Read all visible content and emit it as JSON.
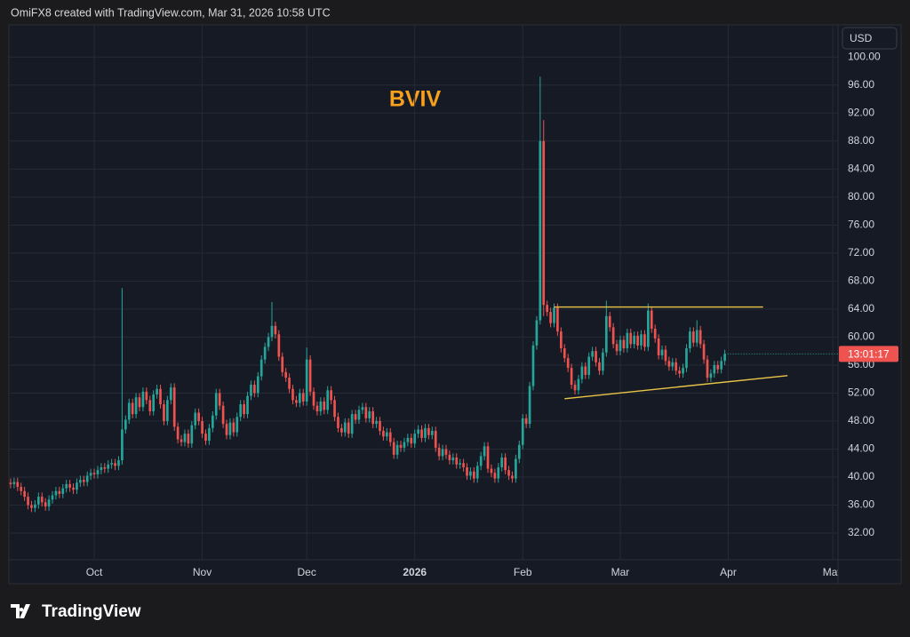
{
  "header": "OmiFX8 created with TradingView.com, Mar 31, 2026 10:58 UTC",
  "currency": "USD",
  "countdown": "13:01:17",
  "logo": "TradingView",
  "chart_data": {
    "type": "candlestick",
    "title": "BVIV",
    "title_color": "#f7a01d",
    "up_color": "#26a69a",
    "down_color": "#ef5350",
    "grid": true,
    "xlim": [
      -0.5,
      237.5
    ],
    "xticks": [
      {
        "value": 24,
        "label": "Oct"
      },
      {
        "value": 55,
        "label": "Nov"
      },
      {
        "value": 85,
        "label": "Dec"
      },
      {
        "value": 116,
        "label": "2026"
      },
      {
        "value": 147,
        "label": "Feb"
      },
      {
        "value": 175,
        "label": "Mar"
      },
      {
        "value": 206,
        "label": "Apr"
      },
      {
        "value": 236,
        "label": "May"
      }
    ],
    "ylim": [
      28.2,
      104.6
    ],
    "yticks": [
      {
        "value": 32,
        "label": "32.00"
      },
      {
        "value": 36,
        "label": "36.00"
      },
      {
        "value": 40,
        "label": "40.00"
      },
      {
        "value": 44,
        "label": "44.00"
      },
      {
        "value": 48,
        "label": "48.00"
      },
      {
        "value": 52,
        "label": "52.00"
      },
      {
        "value": 56,
        "label": "56.00"
      },
      {
        "value": 60,
        "label": "60.00"
      },
      {
        "value": 64,
        "label": "64.00"
      },
      {
        "value": 68,
        "label": "68.00"
      },
      {
        "value": 72,
        "label": "72.00"
      },
      {
        "value": 76,
        "label": "76.00"
      },
      {
        "value": 80,
        "label": "80.00"
      },
      {
        "value": 84,
        "label": "84.00"
      },
      {
        "value": 88,
        "label": "88.00"
      },
      {
        "value": 92,
        "label": "92.00"
      },
      {
        "value": 96,
        "label": "96.00"
      },
      {
        "value": 100,
        "label": "100.00"
      }
    ],
    "open": [
      39.2,
      39.0,
      39.3,
      38.6,
      38.0,
      37.2,
      36.0,
      35.6,
      36.1,
      37.2,
      36.4,
      35.8,
      36.8,
      37.4,
      38.0,
      37.6,
      38.4,
      39.0,
      38.5,
      38.2,
      39.2,
      39.6,
      39.3,
      40.2,
      40.6,
      40.4,
      41.0,
      41.4,
      41.2,
      41.8,
      42.0,
      41.6,
      42.4,
      46.8,
      48.2,
      50.6,
      49.0,
      51.4,
      50.0,
      52.2,
      51.0,
      49.4,
      51.8,
      52.6,
      50.4,
      48.0,
      51.0,
      52.8,
      47.2,
      45.4,
      45.0,
      46.2,
      44.8,
      47.4,
      49.2,
      48.0,
      46.2,
      45.2,
      47.0,
      48.8,
      52.0,
      50.2,
      47.6,
      46.0,
      47.8,
      46.4,
      48.6,
      50.4,
      49.0,
      51.6,
      53.2,
      52.0,
      54.4,
      56.8,
      58.6,
      60.0,
      61.6,
      60.4,
      57.2,
      55.0,
      54.2,
      52.6,
      51.0,
      50.6,
      52.0,
      50.8,
      56.8,
      52.2,
      50.2,
      49.4,
      50.8,
      49.6,
      52.4,
      51.0,
      48.6,
      47.0,
      46.4,
      47.8,
      46.2,
      49.0,
      48.2,
      49.6,
      50.0,
      48.4,
      49.4,
      47.6,
      48.0,
      46.6,
      45.8,
      46.4,
      45.0,
      43.2,
      44.6,
      44.2,
      45.0,
      45.6,
      44.8,
      46.2,
      46.8,
      45.6,
      47.0,
      46.0,
      46.6,
      44.2,
      43.0,
      44.0,
      43.2,
      42.4,
      42.8,
      41.8,
      42.0,
      41.4,
      40.2,
      40.8,
      39.8,
      41.6,
      43.0,
      44.4,
      41.2,
      40.6,
      39.8,
      41.4,
      42.8,
      41.0,
      40.2,
      39.8,
      42.6,
      44.6,
      48.4,
      47.6,
      53.0,
      58.8,
      62.4,
      88.0,
      64.6,
      63.6,
      62.0,
      64.2,
      60.8,
      58.4,
      57.0,
      55.6,
      53.2,
      52.4,
      54.0,
      55.8,
      54.6,
      57.2,
      58.0,
      56.4,
      55.2,
      57.8,
      63.0,
      61.4,
      59.0,
      58.0,
      59.6,
      58.4,
      60.6,
      59.0,
      60.2,
      58.8,
      60.4,
      58.6,
      63.8,
      61.2,
      59.8,
      57.4,
      58.2,
      56.6,
      55.8,
      56.4,
      55.2,
      54.8,
      55.6,
      58.4,
      60.8,
      59.2,
      61.0,
      59.0,
      56.8,
      54.2,
      54.8,
      56.0,
      55.4,
      56.6
    ],
    "high": [
      39.8,
      39.9,
      39.9,
      39.2,
      38.6,
      37.8,
      36.6,
      36.7,
      37.8,
      37.8,
      37.0,
      37.4,
      38.0,
      38.6,
      38.6,
      39.0,
      39.6,
      39.6,
      39.1,
      39.8,
      40.2,
      40.2,
      40.8,
      41.2,
      41.2,
      41.6,
      42.0,
      42.0,
      42.4,
      42.6,
      42.6,
      43.0,
      67.0,
      48.8,
      51.2,
      51.2,
      52.0,
      52.0,
      52.8,
      52.8,
      51.6,
      52.4,
      53.2,
      53.2,
      51.0,
      51.6,
      53.4,
      53.4,
      47.8,
      46.0,
      46.8,
      46.8,
      48.0,
      49.8,
      49.8,
      48.6,
      46.8,
      47.6,
      49.4,
      52.6,
      52.6,
      50.8,
      48.2,
      48.4,
      48.4,
      49.2,
      51.0,
      51.0,
      52.2,
      53.8,
      53.8,
      55.0,
      57.4,
      59.2,
      60.6,
      65.0,
      62.2,
      61.0,
      57.8,
      55.6,
      54.8,
      53.2,
      51.6,
      52.6,
      52.6,
      58.5,
      57.4,
      52.8,
      50.8,
      51.4,
      51.4,
      53.0,
      53.0,
      51.6,
      49.2,
      47.6,
      48.4,
      48.4,
      49.6,
      49.6,
      50.2,
      50.6,
      50.6,
      50.0,
      50.0,
      48.6,
      48.6,
      47.2,
      47.0,
      47.0,
      45.6,
      45.2,
      45.2,
      45.6,
      46.2,
      46.2,
      46.8,
      47.4,
      47.4,
      47.6,
      47.6,
      47.2,
      47.2,
      44.8,
      44.6,
      44.6,
      43.8,
      43.4,
      43.4,
      42.6,
      42.6,
      42.0,
      41.4,
      41.4,
      42.2,
      43.6,
      45.0,
      45.0,
      41.8,
      41.2,
      42.0,
      43.4,
      43.4,
      41.6,
      40.8,
      43.2,
      45.2,
      49.0,
      49.0,
      53.6,
      59.4,
      63.0,
      97.2,
      91.0,
      65.2,
      64.2,
      64.8,
      64.8,
      61.4,
      59.0,
      57.6,
      56.2,
      53.8,
      54.6,
      56.4,
      56.4,
      57.8,
      58.6,
      58.6,
      57.0,
      58.4,
      65.2,
      63.6,
      62.0,
      59.6,
      60.2,
      60.2,
      61.2,
      61.2,
      60.8,
      60.8,
      61.0,
      61.0,
      64.8,
      64.4,
      61.8,
      60.4,
      58.8,
      58.8,
      57.2,
      57.0,
      57.0,
      55.8,
      56.2,
      59.0,
      61.4,
      61.4,
      62.4,
      61.6,
      59.6,
      57.4,
      55.4,
      56.6,
      56.6,
      57.2,
      58.2
    ],
    "low": [
      38.4,
      38.4,
      38.0,
      37.4,
      36.6,
      35.4,
      35.0,
      35.0,
      35.5,
      35.8,
      35.2,
      35.2,
      36.2,
      36.8,
      37.0,
      37.0,
      37.8,
      37.9,
      37.6,
      37.6,
      38.6,
      38.7,
      38.7,
      39.6,
      39.8,
      39.8,
      40.4,
      40.6,
      40.6,
      41.2,
      41.0,
      41.0,
      41.8,
      46.2,
      47.6,
      48.4,
      48.4,
      49.4,
      49.4,
      50.4,
      48.8,
      48.8,
      51.2,
      49.8,
      47.4,
      47.4,
      50.4,
      46.6,
      44.8,
      44.4,
      44.4,
      44.2,
      44.2,
      46.8,
      47.4,
      45.6,
      44.6,
      44.6,
      46.4,
      48.2,
      49.6,
      47.0,
      45.4,
      45.4,
      45.8,
      45.8,
      48.0,
      48.4,
      48.4,
      51.0,
      51.4,
      51.4,
      53.8,
      56.2,
      58.0,
      59.4,
      59.8,
      56.6,
      54.4,
      53.6,
      52.0,
      50.4,
      50.0,
      50.0,
      50.2,
      50.2,
      51.6,
      49.6,
      48.8,
      48.8,
      49.0,
      49.0,
      50.4,
      48.0,
      46.4,
      45.8,
      45.8,
      45.6,
      45.6,
      47.6,
      47.6,
      49.0,
      47.8,
      47.8,
      47.0,
      47.0,
      46.0,
      45.2,
      45.2,
      44.4,
      42.6,
      42.6,
      43.6,
      43.6,
      44.4,
      44.2,
      44.2,
      45.6,
      45.0,
      45.0,
      45.4,
      45.4,
      43.6,
      42.4,
      42.4,
      42.6,
      41.8,
      41.8,
      41.2,
      41.2,
      40.8,
      39.6,
      39.6,
      39.2,
      39.2,
      41.0,
      42.4,
      40.6,
      40.0,
      39.2,
      39.2,
      40.8,
      40.4,
      39.6,
      39.2,
      39.2,
      42.0,
      44.0,
      47.0,
      47.0,
      52.4,
      58.2,
      61.8,
      63.0,
      63.0,
      61.4,
      61.4,
      60.2,
      57.8,
      56.4,
      55.0,
      52.6,
      51.8,
      51.8,
      53.4,
      54.0,
      54.0,
      56.6,
      55.8,
      54.6,
      54.6,
      57.2,
      60.8,
      58.4,
      57.4,
      57.4,
      57.8,
      57.8,
      58.4,
      58.4,
      58.2,
      58.2,
      58.0,
      58.0,
      60.6,
      59.2,
      56.8,
      56.8,
      56.0,
      55.2,
      55.2,
      54.6,
      54.2,
      54.2,
      55.0,
      57.8,
      58.6,
      58.6,
      58.4,
      56.2,
      53.6,
      53.6,
      54.2,
      54.8,
      54.8,
      56.0
    ],
    "close": [
      39.0,
      39.3,
      38.6,
      38.0,
      37.2,
      36.0,
      35.6,
      36.1,
      37.2,
      36.4,
      35.8,
      36.8,
      37.4,
      38.0,
      37.6,
      38.4,
      39.0,
      38.5,
      38.2,
      39.2,
      39.6,
      39.3,
      40.2,
      40.6,
      40.4,
      41.0,
      41.4,
      41.2,
      41.8,
      42.0,
      41.6,
      42.4,
      46.8,
      48.2,
      50.6,
      49.0,
      51.4,
      50.0,
      52.2,
      51.0,
      49.4,
      51.8,
      52.6,
      50.4,
      48.0,
      51.0,
      52.8,
      47.2,
      45.4,
      45.0,
      46.2,
      44.8,
      47.4,
      49.2,
      48.0,
      46.2,
      45.2,
      47.0,
      48.8,
      52.0,
      50.2,
      47.6,
      46.0,
      47.8,
      46.4,
      48.6,
      50.4,
      49.0,
      51.6,
      53.2,
      52.0,
      54.4,
      56.8,
      58.6,
      60.0,
      61.6,
      60.4,
      57.2,
      55.0,
      54.2,
      52.6,
      51.0,
      50.6,
      52.0,
      50.8,
      56.8,
      52.2,
      50.2,
      49.4,
      50.8,
      49.6,
      52.4,
      51.0,
      48.6,
      47.0,
      46.4,
      47.8,
      46.2,
      49.0,
      48.2,
      49.6,
      50.0,
      48.4,
      49.4,
      47.6,
      48.0,
      46.6,
      45.8,
      46.4,
      45.0,
      43.2,
      44.6,
      44.2,
      45.0,
      45.6,
      44.8,
      46.2,
      46.8,
      45.6,
      47.0,
      46.0,
      46.6,
      44.2,
      43.0,
      44.0,
      43.2,
      42.4,
      42.8,
      41.8,
      42.0,
      41.4,
      40.2,
      40.8,
      39.8,
      41.6,
      43.0,
      44.4,
      41.2,
      40.6,
      39.8,
      41.4,
      42.8,
      41.0,
      40.2,
      39.8,
      42.6,
      44.6,
      48.4,
      47.6,
      53.0,
      58.8,
      62.4,
      88.0,
      64.6,
      63.6,
      62.0,
      64.2,
      60.8,
      58.4,
      57.0,
      55.6,
      53.2,
      52.4,
      54.0,
      55.8,
      54.6,
      57.2,
      58.0,
      56.4,
      55.2,
      57.8,
      63.0,
      61.4,
      59.0,
      58.0,
      59.6,
      58.4,
      60.6,
      59.0,
      60.2,
      58.8,
      60.4,
      58.6,
      63.8,
      61.2,
      59.8,
      57.4,
      58.2,
      56.6,
      55.8,
      56.4,
      55.2,
      54.8,
      55.6,
      58.4,
      60.8,
      59.2,
      61.0,
      59.0,
      56.8,
      54.2,
      54.8,
      56.0,
      55.4,
      56.6,
      57.6
    ],
    "lines": [
      {
        "color": "#e8c547",
        "x": [
          156,
          216
        ],
        "y": [
          64.3,
          64.3
        ]
      },
      {
        "color": "#e8c547",
        "x": [
          159,
          223
        ],
        "y": [
          51.2,
          54.5
        ]
      }
    ]
  }
}
